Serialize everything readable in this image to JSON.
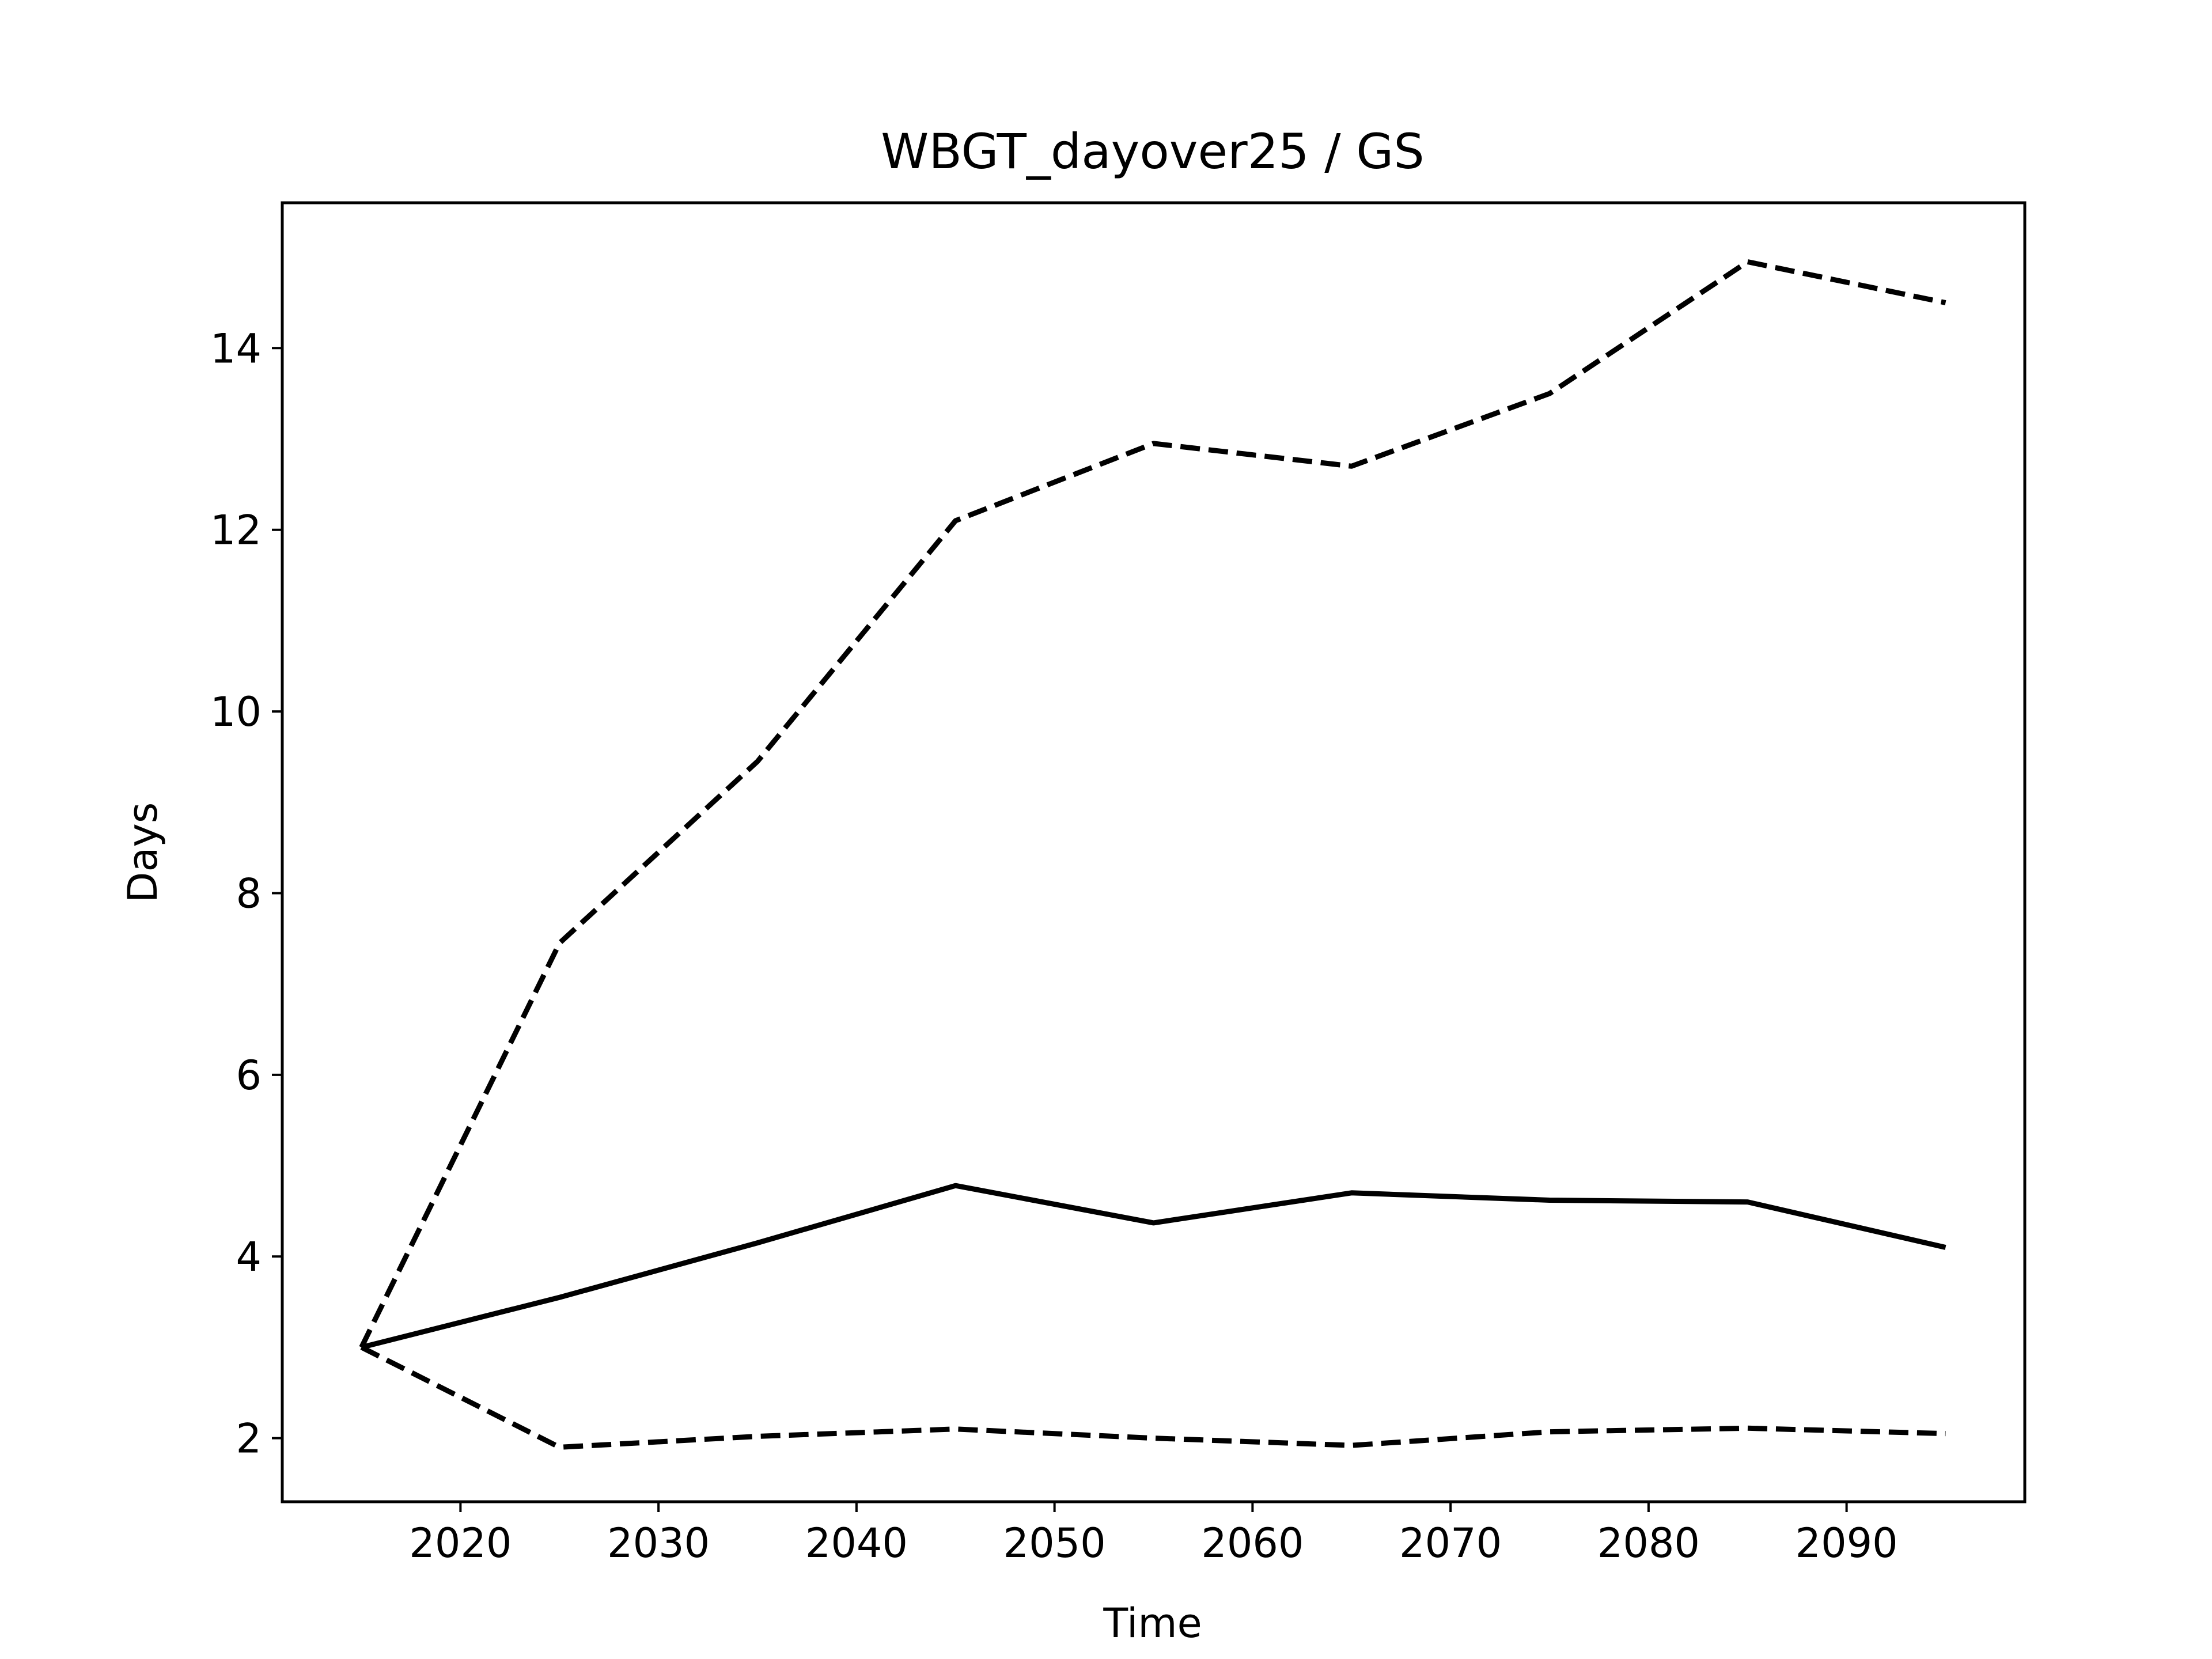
{
  "chart_data": {
    "type": "line",
    "title": "WBGT_dayover25 / GS",
    "xlabel": "Time",
    "ylabel": "Days",
    "xlim": [
      2011,
      2099
    ],
    "ylim": [
      1.3,
      15.6
    ],
    "xticks": [
      2020,
      2030,
      2040,
      2050,
      2060,
      2070,
      2080,
      2090
    ],
    "yticks": [
      2,
      4,
      6,
      8,
      10,
      12,
      14
    ],
    "grid": false,
    "legend": "none",
    "x": [
      2015,
      2025,
      2035,
      2045,
      2055,
      2065,
      2075,
      2085,
      2095
    ],
    "series": [
      {
        "style": "solid",
        "color": "#000000",
        "values": [
          3.0,
          3.55,
          4.15,
          4.78,
          4.37,
          4.7,
          4.62,
          4.6,
          4.1
        ]
      },
      {
        "style": "dashed",
        "color": "#000000",
        "values": [
          3.0,
          7.45,
          9.45,
          12.1,
          12.95,
          12.7,
          13.5,
          14.95,
          14.5
        ]
      },
      {
        "style": "dashed",
        "color": "#000000",
        "values": [
          3.0,
          1.9,
          2.02,
          2.1,
          2.0,
          1.92,
          2.07,
          2.11,
          2.05
        ]
      }
    ]
  }
}
